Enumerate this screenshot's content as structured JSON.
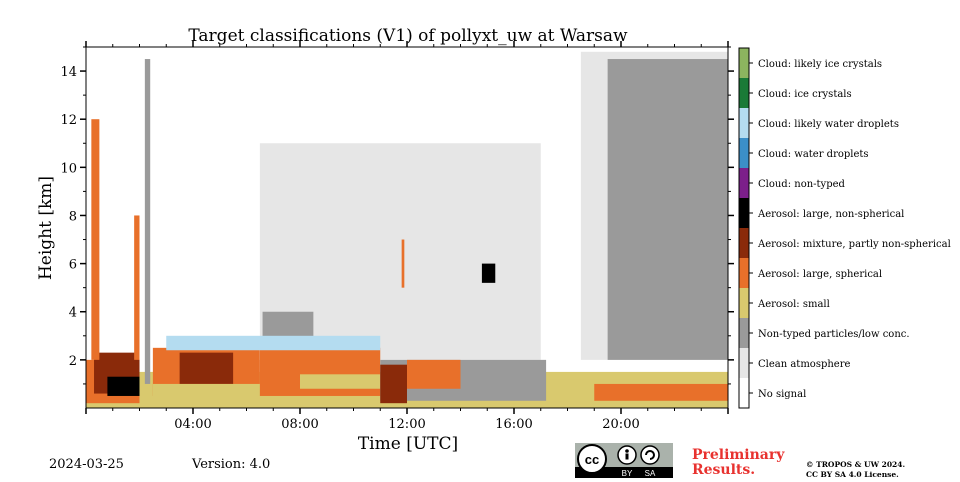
{
  "chart_data": {
    "type": "heatmap",
    "title": "Target classifications (V1) of pollyxt_uw at Warsaw",
    "xlabel": "Time [UTC]",
    "ylabel": "Height [km]",
    "xlim_hours": [
      0,
      24
    ],
    "ylim_km": [
      0,
      15
    ],
    "x_tick_labels": [
      "04:00",
      "08:00",
      "12:00",
      "16:00",
      "20:00"
    ],
    "x_tick_hours": [
      4,
      8,
      12,
      16,
      20
    ],
    "y_tick_values": [
      2,
      4,
      6,
      8,
      10,
      12,
      14
    ],
    "legend_placement": "right colorbar",
    "classes": [
      {
        "label": "Cloud: likely ice crystals",
        "color": "#8cb45f"
      },
      {
        "label": "Cloud: ice crystals",
        "color": "#1a7a37"
      },
      {
        "label": "Cloud: likely water droplets",
        "color": "#b4dcf0"
      },
      {
        "label": "Cloud: water droplets",
        "color": "#3b8fc8"
      },
      {
        "label": "Cloud: non-typed",
        "color": "#7c1f8a"
      },
      {
        "label": "Aerosol: large, non-spherical",
        "color": "#000000"
      },
      {
        "label": "Aerosol: mixture, partly non-spherical",
        "color": "#8a2a0a"
      },
      {
        "label": "Aerosol: large, spherical",
        "color": "#e8702a"
      },
      {
        "label": "Aerosol: small",
        "color": "#d9c96e"
      },
      {
        "label": "Non-typed particles/low conc.",
        "color": "#9a9a9a"
      },
      {
        "label": "Clean atmosphere",
        "color": "#e6e6e6"
      },
      {
        "label": "No signal",
        "color": "#ffffff"
      }
    ],
    "regions": [
      {
        "class": "Aerosol: small",
        "t0": 0.0,
        "t1": 24.0,
        "h0": 0.0,
        "h1": 1.5
      },
      {
        "class": "Aerosol: large, spherical",
        "t0": 0.0,
        "t1": 2.0,
        "h0": 0.2,
        "h1": 2.0
      },
      {
        "class": "Aerosol: mixture, partly non-spherical",
        "t0": 0.3,
        "t1": 2.0,
        "h0": 0.6,
        "h1": 2.3
      },
      {
        "class": "Aerosol: large, non-spherical",
        "t0": 0.8,
        "t1": 2.0,
        "h0": 0.5,
        "h1": 1.3
      },
      {
        "class": "Aerosol: large, spherical",
        "t0": 0.2,
        "t1": 0.5,
        "h0": 2.0,
        "h1": 12.0
      },
      {
        "class": "Aerosol: large, spherical",
        "t0": 1.8,
        "t1": 2.0,
        "h0": 2.0,
        "h1": 8.0
      },
      {
        "class": "Non-typed particles/low conc.",
        "t0": 2.2,
        "t1": 2.4,
        "h0": 1.0,
        "h1": 14.5
      },
      {
        "class": "Aerosol: large, spherical",
        "t0": 2.5,
        "t1": 6.5,
        "h0": 0.5,
        "h1": 2.5
      },
      {
        "class": "Aerosol: mixture, partly non-spherical",
        "t0": 3.5,
        "t1": 5.5,
        "h0": 1.0,
        "h1": 2.3
      },
      {
        "class": "Aerosol: small",
        "t0": 2.5,
        "t1": 10.5,
        "h0": 0.1,
        "h1": 1.0
      },
      {
        "class": "Clean atmosphere",
        "t0": 6.5,
        "t1": 17.0,
        "h0": 2.0,
        "h1": 11.0
      },
      {
        "class": "Non-typed particles/low conc.",
        "t0": 6.6,
        "t1": 8.5,
        "h0": 1.5,
        "h1": 4.0
      },
      {
        "class": "Aerosol: large, spherical",
        "t0": 6.5,
        "t1": 11.0,
        "h0": 0.5,
        "h1": 2.5
      },
      {
        "class": "Cloud: likely water droplets",
        "t0": 3.0,
        "t1": 11.0,
        "h0": 2.4,
        "h1": 3.0
      },
      {
        "class": "Aerosol: small",
        "t0": 8.0,
        "t1": 11.0,
        "h0": 0.8,
        "h1": 1.4
      },
      {
        "class": "Non-typed particles/low conc.",
        "t0": 11.0,
        "t1": 17.2,
        "h0": 0.3,
        "h1": 2.0
      },
      {
        "class": "Aerosol: mixture, partly non-spherical",
        "t0": 11.0,
        "t1": 12.0,
        "h0": 0.2,
        "h1": 1.8
      },
      {
        "class": "Aerosol: large, spherical",
        "t0": 12.0,
        "t1": 14.0,
        "h0": 0.8,
        "h1": 2.0
      },
      {
        "class": "Aerosol: large, non-spherical",
        "t0": 14.8,
        "t1": 15.3,
        "h0": 5.2,
        "h1": 6.0
      },
      {
        "class": "Aerosol: large, spherical",
        "t0": 11.8,
        "t1": 11.9,
        "h0": 5.0,
        "h1": 7.0
      },
      {
        "class": "Clean atmosphere",
        "t0": 18.5,
        "t1": 24.0,
        "h0": 2.0,
        "h1": 14.8
      },
      {
        "class": "Non-typed particles/low conc.",
        "t0": 19.5,
        "t1": 24.0,
        "h0": 2.0,
        "h1": 14.5
      },
      {
        "class": "Aerosol: small",
        "t0": 17.3,
        "t1": 24.0,
        "h0": 0.0,
        "h1": 1.2
      },
      {
        "class": "Aerosol: large, spherical",
        "t0": 19.0,
        "t1": 24.0,
        "h0": 0.3,
        "h1": 1.0
      }
    ]
  },
  "footer": {
    "date": "2024-03-25",
    "version": "Version: 4.0",
    "preliminary_line1": "Preliminary",
    "preliminary_line2": "Results.",
    "copyright_line1": "© TROPOS & UW 2024.",
    "copyright_line2": "CC BY SA 4.0 License.",
    "license_badge_by": "BY",
    "license_badge_sa": "SA"
  }
}
